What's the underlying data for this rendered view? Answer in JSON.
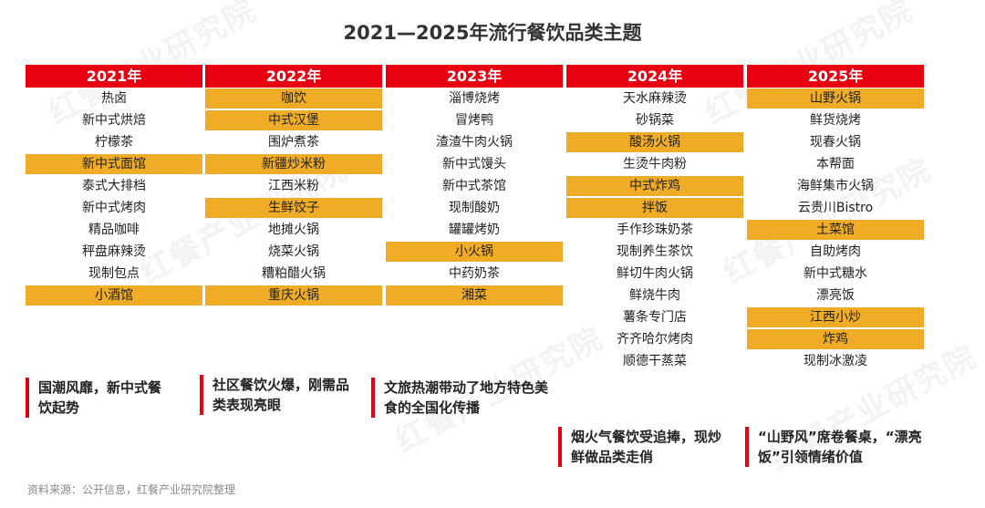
{
  "title": "2021—2025年流行餐饮品类主题",
  "watermark": "红餐产业研究院",
  "colors": {
    "header": "#e60012",
    "highlight": "#f0ac26"
  },
  "years": [
    {
      "year": "2021年",
      "items": [
        {
          "label": "热卤",
          "highlight": false
        },
        {
          "label": "新中式烘焙",
          "highlight": false
        },
        {
          "label": "柠檬茶",
          "highlight": false
        },
        {
          "label": "新中式面馆",
          "highlight": true
        },
        {
          "label": "泰式大排档",
          "highlight": false
        },
        {
          "label": "新中式烤肉",
          "highlight": false
        },
        {
          "label": "精品咖啡",
          "highlight": false
        },
        {
          "label": "秤盘麻辣烫",
          "highlight": false
        },
        {
          "label": "现制包点",
          "highlight": false
        },
        {
          "label": "小酒馆",
          "highlight": true
        }
      ],
      "note": "国潮风靡，新中式餐饮起势"
    },
    {
      "year": "2022年",
      "items": [
        {
          "label": "咖饮",
          "highlight": true
        },
        {
          "label": "中式汉堡",
          "highlight": true
        },
        {
          "label": "围炉煮茶",
          "highlight": false
        },
        {
          "label": "新疆炒米粉",
          "highlight": true
        },
        {
          "label": "江西米粉",
          "highlight": false
        },
        {
          "label": "生鲜饺子",
          "highlight": true
        },
        {
          "label": "地摊火锅",
          "highlight": false
        },
        {
          "label": "烧菜火锅",
          "highlight": false
        },
        {
          "label": "糟粕醋火锅",
          "highlight": false
        },
        {
          "label": "重庆火锅",
          "highlight": true
        }
      ],
      "note": "社区餐饮火爆，刚需品类表现亮眼"
    },
    {
      "year": "2023年",
      "items": [
        {
          "label": "淄博烧烤",
          "highlight": false
        },
        {
          "label": "冒烤鸭",
          "highlight": false
        },
        {
          "label": "渣渣牛肉火锅",
          "highlight": false
        },
        {
          "label": "新中式馒头",
          "highlight": false
        },
        {
          "label": "新中式茶馆",
          "highlight": false
        },
        {
          "label": "现制酸奶",
          "highlight": false
        },
        {
          "label": "罐罐烤奶",
          "highlight": false
        },
        {
          "label": "小火锅",
          "highlight": true
        },
        {
          "label": "中药奶茶",
          "highlight": false
        },
        {
          "label": "湘菜",
          "highlight": true
        }
      ],
      "note": "文旅热潮带动了地方特色美食的全国化传播"
    },
    {
      "year": "2024年",
      "items": [
        {
          "label": "天水麻辣烫",
          "highlight": false
        },
        {
          "label": "砂锅菜",
          "highlight": false
        },
        {
          "label": "酸汤火锅",
          "highlight": true
        },
        {
          "label": "生烫牛肉粉",
          "highlight": false
        },
        {
          "label": "中式炸鸡",
          "highlight": true
        },
        {
          "label": "拌饭",
          "highlight": true
        },
        {
          "label": "手作珍珠奶茶",
          "highlight": false
        },
        {
          "label": "现制养生茶饮",
          "highlight": false
        },
        {
          "label": "鲜切牛肉火锅",
          "highlight": false
        },
        {
          "label": "鲜烧牛肉",
          "highlight": false
        },
        {
          "label": "薯条专门店",
          "highlight": false
        },
        {
          "label": "齐齐哈尔烤肉",
          "highlight": false
        },
        {
          "label": "顺德干蒸菜",
          "highlight": false
        }
      ],
      "note": "烟火气餐饮受追捧，现炒鲜做品类走俏"
    },
    {
      "year": "2025年",
      "items": [
        {
          "label": "山野火锅",
          "highlight": true
        },
        {
          "label": "鲜货烧烤",
          "highlight": false
        },
        {
          "label": "现春火锅",
          "highlight": false
        },
        {
          "label": "本帮面",
          "highlight": false
        },
        {
          "label": "海鲜集市火锅",
          "highlight": false
        },
        {
          "label": "云贵川Bistro",
          "highlight": false
        },
        {
          "label": "土菜馆",
          "highlight": true
        },
        {
          "label": "自助烤肉",
          "highlight": false
        },
        {
          "label": "新中式糖水",
          "highlight": false
        },
        {
          "label": "漂亮饭",
          "highlight": false
        },
        {
          "label": "江西小炒",
          "highlight": true
        },
        {
          "label": "炸鸡",
          "highlight": true
        },
        {
          "label": "现制冰激凌",
          "highlight": false
        }
      ],
      "note": "“山野风”席卷餐桌，“漂亮饭”引领情绪价值"
    }
  ],
  "source": "资料来源：公开信息，红餐产业研究院整理"
}
